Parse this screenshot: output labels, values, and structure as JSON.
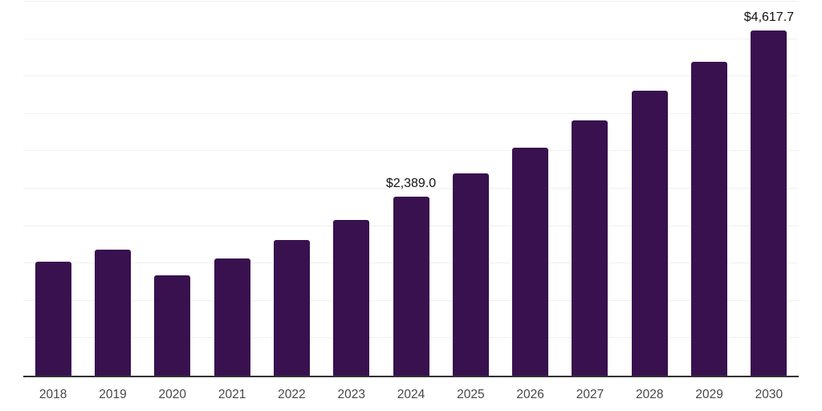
{
  "chart_data": {
    "type": "bar",
    "title": "",
    "xlabel": "",
    "ylabel": "",
    "categories": [
      "2018",
      "2019",
      "2020",
      "2021",
      "2022",
      "2023",
      "2024",
      "2025",
      "2026",
      "2027",
      "2028",
      "2029",
      "2030"
    ],
    "values": [
      1520,
      1685,
      1345,
      1570,
      1815,
      2085,
      2389.0,
      2705,
      3045,
      3410,
      3805,
      4200,
      4617.7
    ],
    "data_labels": [
      "",
      "",
      "",
      "",
      "",
      "",
      "$2,389.0",
      "",
      "",
      "",
      "",
      "",
      "$4,617.7"
    ],
    "ylim": [
      0,
      5000
    ],
    "gridline_step": 500,
    "grid": true,
    "legend": "none",
    "y_axis_labels_visible": false
  },
  "style": {
    "bar_color": "#38114e",
    "gridline_color": "#f0f0f0",
    "axis_line_color": "#333333",
    "tick_label_color": "#474747",
    "data_label_color": "#111111",
    "background_color": "#ffffff"
  }
}
